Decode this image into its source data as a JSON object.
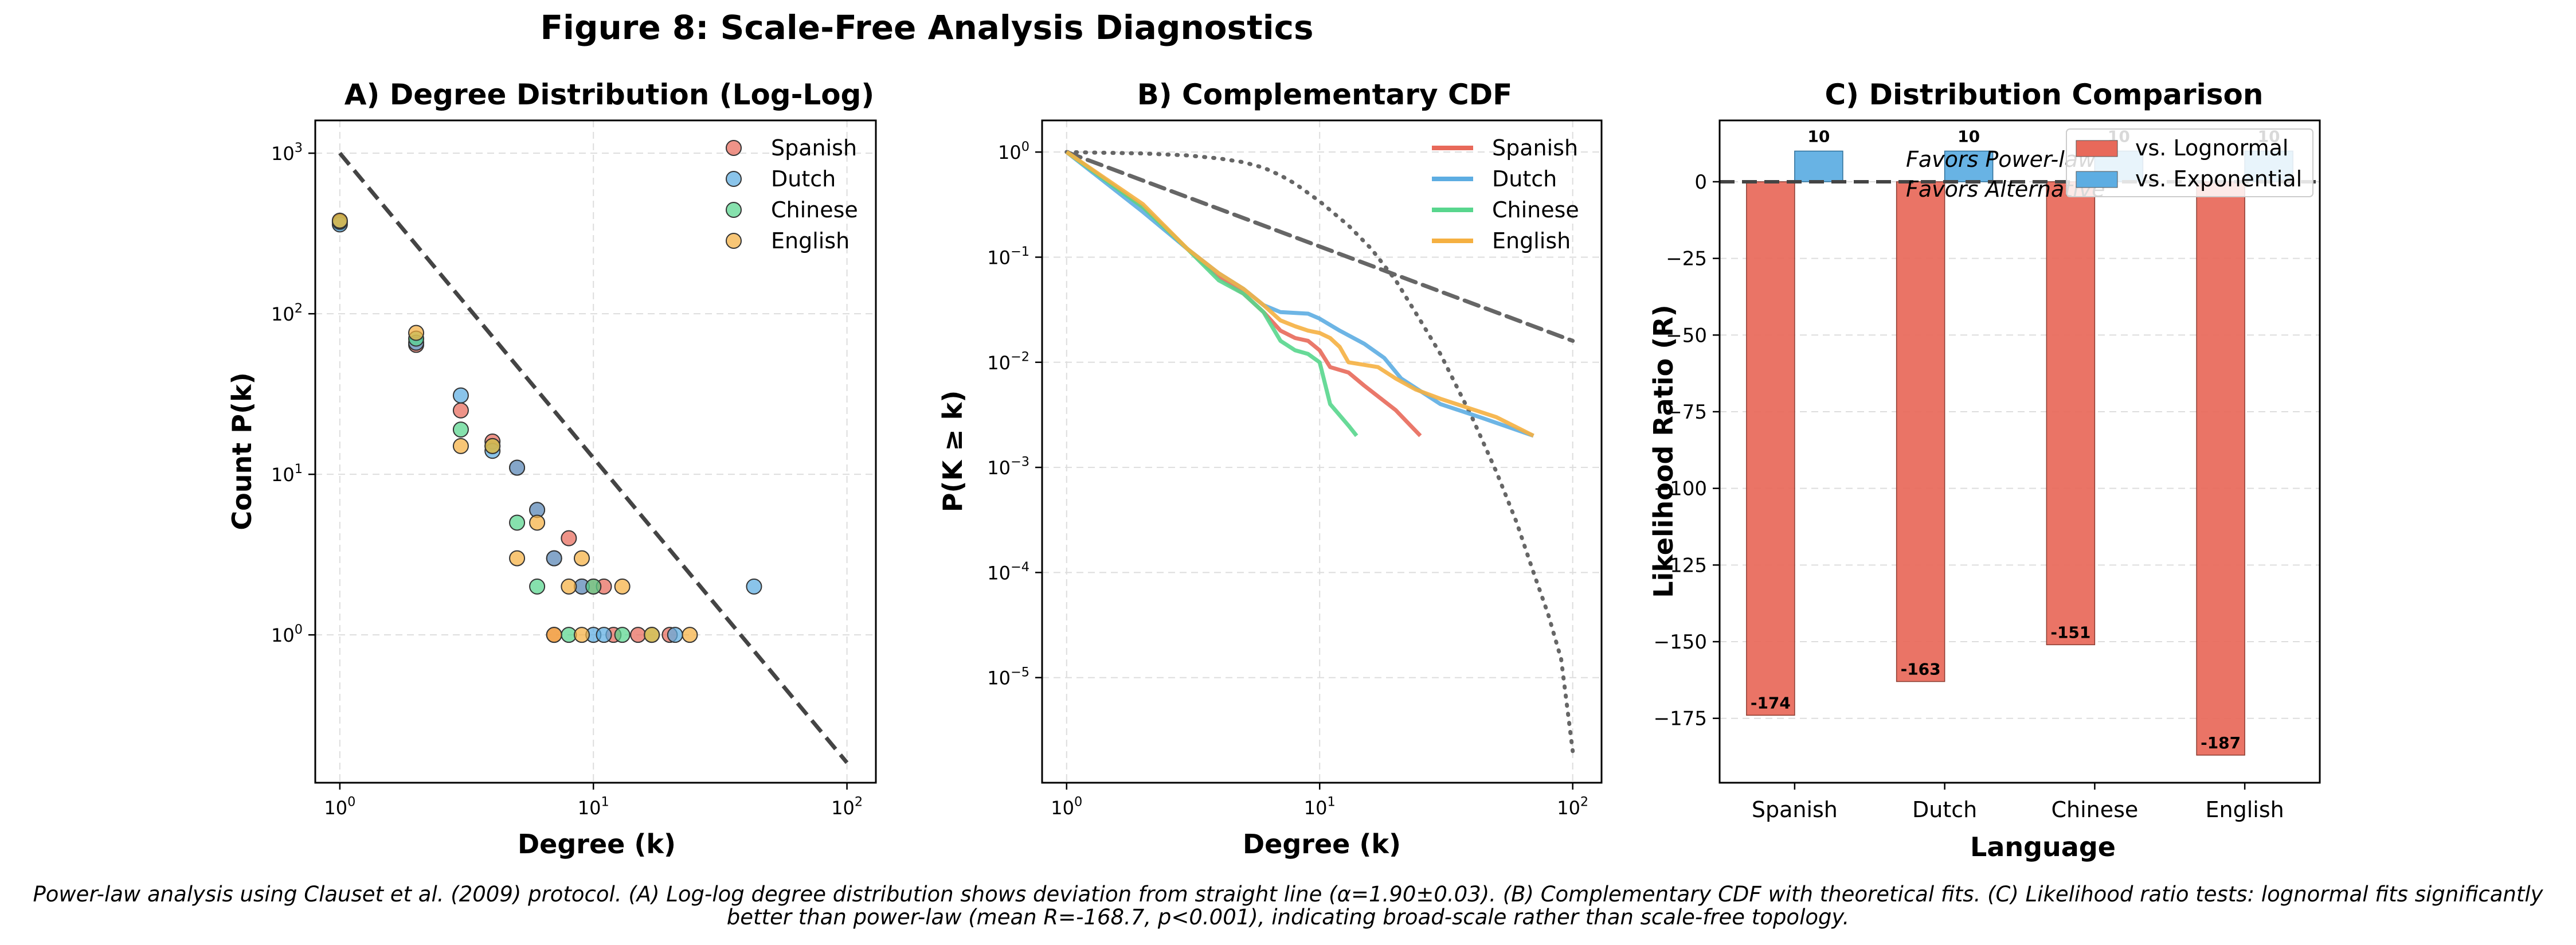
{
  "figure": {
    "title": "Figure 8: Scale-Free Analysis Diagnostics",
    "caption_line1": "Power-law analysis using Clauset et al. (2009) protocol. (A) Log-log degree distribution shows deviation from straight line (α=1.90±0.03). (B) Complementary CDF with theoretical fits. (C) Likelihood ratio tests: lognormal fits significantly",
    "caption_line2": "better than power-law (mean R=-168.7, p<0.001), indicating broad-scale rather than scale-free topology."
  },
  "colors": {
    "Spanish": "#e8695a",
    "Dutch": "#5dade2",
    "Chinese": "#58d68d",
    "English": "#f5b041",
    "lognormal": "#e8695a",
    "exponential": "#5dade2",
    "reference": "#444444"
  },
  "chart_data": [
    {
      "type": "scatter",
      "title": "A) Degree Distribution (Log-Log)",
      "xlabel": "Degree (k)",
      "ylabel": "Count P(k)",
      "xscale": "log",
      "yscale": "log",
      "xlim": [
        0.8,
        130
      ],
      "ylim": [
        0.12,
        1600
      ],
      "xticks": [
        {
          "v": 1,
          "label": "10",
          "exp": "0"
        },
        {
          "v": 10,
          "label": "10",
          "exp": "1"
        },
        {
          "v": 100,
          "label": "10",
          "exp": "2"
        }
      ],
      "yticks": [
        {
          "v": 1,
          "label": "10",
          "exp": "0"
        },
        {
          "v": 10,
          "label": "10",
          "exp": "1"
        },
        {
          "v": 100,
          "label": "10",
          "exp": "2"
        },
        {
          "v": 1000,
          "label": "10",
          "exp": "3"
        }
      ],
      "legend_position": "top-right",
      "grid": true,
      "reference_line": {
        "x": [
          1,
          100
        ],
        "y": [
          1000,
          0.16
        ],
        "style": "dashed"
      },
      "series": [
        {
          "name": "Spanish",
          "points": [
            [
              1,
              370
            ],
            [
              2,
              64
            ],
            [
              3,
              25
            ],
            [
              4,
              16
            ],
            [
              5,
              11
            ],
            [
              6,
              6
            ],
            [
              7,
              3
            ],
            [
              8,
              4
            ],
            [
              9,
              2
            ],
            [
              10,
              2
            ],
            [
              11,
              2
            ],
            [
              7,
              1
            ],
            [
              12,
              1
            ],
            [
              15,
              1
            ],
            [
              20,
              1
            ]
          ]
        },
        {
          "name": "Dutch",
          "points": [
            [
              1,
              360
            ],
            [
              2,
              66
            ],
            [
              3,
              31
            ],
            [
              4,
              14
            ],
            [
              5,
              11
            ],
            [
              6,
              6
            ],
            [
              7,
              3
            ],
            [
              9,
              2
            ],
            [
              10,
              1
            ],
            [
              11,
              1
            ],
            [
              43,
              2
            ],
            [
              21,
              1
            ]
          ]
        },
        {
          "name": "Chinese",
          "points": [
            [
              1,
              375
            ],
            [
              2,
              70
            ],
            [
              3,
              19
            ],
            [
              4,
              15
            ],
            [
              5,
              5
            ],
            [
              6,
              2
            ],
            [
              8,
              1
            ],
            [
              10,
              2
            ],
            [
              13,
              1
            ],
            [
              17,
              1
            ]
          ]
        },
        {
          "name": "English",
          "points": [
            [
              1,
              380
            ],
            [
              2,
              76
            ],
            [
              3,
              15
            ],
            [
              4,
              15
            ],
            [
              5,
              3
            ],
            [
              6,
              5
            ],
            [
              8,
              2
            ],
            [
              9,
              3
            ],
            [
              13,
              2
            ],
            [
              7,
              1
            ],
            [
              9,
              1
            ],
            [
              17,
              1
            ],
            [
              24,
              1
            ]
          ]
        }
      ]
    },
    {
      "type": "line",
      "title": "B) Complementary CDF",
      "xlabel": "Degree (k)",
      "ylabel": "P(K ≥ k)",
      "xscale": "log",
      "yscale": "log",
      "xlim": [
        0.8,
        130
      ],
      "ylim": [
        1e-06,
        2.0
      ],
      "xticks": [
        {
          "v": 1,
          "label": "10",
          "exp": "0"
        },
        {
          "v": 10,
          "label": "10",
          "exp": "1"
        },
        {
          "v": 100,
          "label": "10",
          "exp": "2"
        }
      ],
      "yticks": [
        {
          "v": 1,
          "label": "10",
          "exp": "0"
        },
        {
          "v": 0.1,
          "label": "10",
          "exp": "−1"
        },
        {
          "v": 0.01,
          "label": "10",
          "exp": "−2"
        },
        {
          "v": 0.001,
          "label": "10",
          "exp": "−3"
        },
        {
          "v": 0.0001,
          "label": "10",
          "exp": "−4"
        },
        {
          "v": 1e-05,
          "label": "10",
          "exp": "−5"
        }
      ],
      "legend_position": "top-right",
      "grid": true,
      "series": [
        {
          "name": "Spanish",
          "points": [
            [
              1,
              1
            ],
            [
              2,
              0.3
            ],
            [
              3,
              0.12
            ],
            [
              4,
              0.065
            ],
            [
              5,
              0.045
            ],
            [
              6,
              0.03
            ],
            [
              7,
              0.02
            ],
            [
              8,
              0.017
            ],
            [
              9,
              0.016
            ],
            [
              10,
              0.013
            ],
            [
              11,
              0.009
            ],
            [
              13,
              0.008
            ],
            [
              15,
              0.006
            ],
            [
              20,
              0.0035
            ],
            [
              25,
              0.002
            ]
          ]
        },
        {
          "name": "Dutch",
          "points": [
            [
              1,
              1
            ],
            [
              2,
              0.27
            ],
            [
              3,
              0.12
            ],
            [
              4,
              0.07
            ],
            [
              5,
              0.05
            ],
            [
              6,
              0.035
            ],
            [
              7,
              0.03
            ],
            [
              9,
              0.029
            ],
            [
              10,
              0.026
            ],
            [
              12,
              0.02
            ],
            [
              15,
              0.015
            ],
            [
              18,
              0.011
            ],
            [
              21,
              0.007
            ],
            [
              30,
              0.004
            ],
            [
              43,
              0.003
            ],
            [
              70,
              0.002
            ]
          ]
        },
        {
          "name": "Chinese",
          "points": [
            [
              1,
              1
            ],
            [
              2,
              0.3
            ],
            [
              3,
              0.12
            ],
            [
              4,
              0.06
            ],
            [
              5,
              0.045
            ],
            [
              6,
              0.03
            ],
            [
              7,
              0.016
            ],
            [
              8,
              0.013
            ],
            [
              9,
              0.012
            ],
            [
              10,
              0.01
            ],
            [
              11,
              0.004
            ],
            [
              13,
              0.0025
            ],
            [
              14,
              0.002
            ]
          ]
        },
        {
          "name": "English",
          "points": [
            [
              1,
              1
            ],
            [
              2,
              0.32
            ],
            [
              3,
              0.12
            ],
            [
              4,
              0.07
            ],
            [
              5,
              0.05
            ],
            [
              6,
              0.035
            ],
            [
              7,
              0.025
            ],
            [
              8,
              0.022
            ],
            [
              9,
              0.02
            ],
            [
              10,
              0.019
            ],
            [
              11,
              0.017
            ],
            [
              12,
              0.014
            ],
            [
              13,
              0.01
            ],
            [
              17,
              0.009
            ],
            [
              20,
              0.007
            ],
            [
              24,
              0.0055
            ],
            [
              30,
              0.0045
            ],
            [
              50,
              0.003
            ],
            [
              70,
              0.002
            ]
          ]
        }
      ],
      "reference_lines": [
        {
          "style": "dashed",
          "x": [
            1,
            100
          ],
          "y": [
            1,
            0.016
          ]
        },
        {
          "style": "dotted",
          "x": [
            1,
            2,
            3,
            4,
            5,
            6,
            7,
            8,
            10,
            13,
            16,
            20,
            25,
            30,
            40,
            50,
            60,
            70,
            80,
            90,
            100
          ],
          "y": [
            1,
            0.97,
            0.93,
            0.87,
            0.8,
            0.71,
            0.6,
            0.5,
            0.34,
            0.2,
            0.12,
            0.06,
            0.025,
            0.012,
            0.003,
            0.0009,
            0.0003,
            0.0001,
            4e-05,
            1.5e-05,
            2e-06
          ]
        }
      ]
    },
    {
      "type": "bar",
      "title": "C) Distribution Comparison",
      "xlabel": "Language",
      "ylabel": "Likelihood Ratio (R)",
      "categories": [
        "Spanish",
        "Dutch",
        "Chinese",
        "English"
      ],
      "ylim": [
        -196,
        20
      ],
      "yticks": [
        0,
        -25,
        -50,
        -75,
        -100,
        -125,
        -150,
        -175
      ],
      "legend_position": "top-right",
      "grid": true,
      "series": [
        {
          "name": "vs. Lognormal",
          "values": [
            -174,
            -163,
            -151,
            -187
          ],
          "labels": [
            "-174",
            "-163",
            "-151",
            "-187"
          ]
        },
        {
          "name": "vs. Exponential",
          "values": [
            10,
            10,
            10,
            10
          ],
          "labels": [
            "10",
            "10",
            "10",
            "10"
          ]
        }
      ],
      "annotations": [
        "Favors Power-law",
        "Favors Alternative"
      ]
    }
  ]
}
